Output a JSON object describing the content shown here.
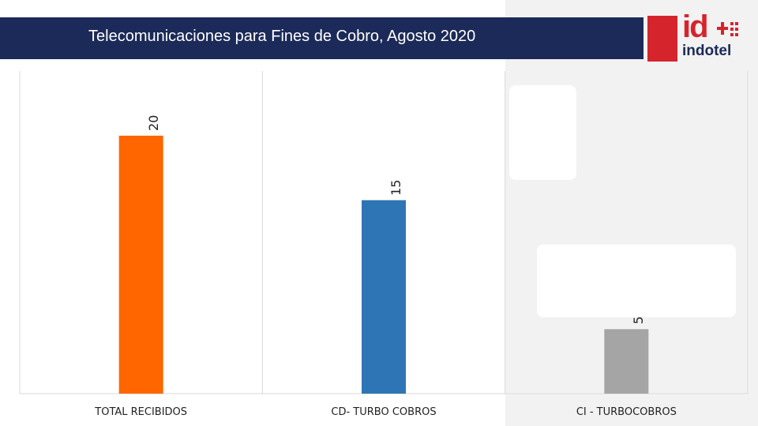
{
  "header": {
    "title": "Telecomunicaciones para Fines de Cobro, Agosto 2020"
  },
  "logo": {
    "mark": "id",
    "name": "indotel"
  },
  "colors": {
    "title_bar": "#1b2a58",
    "brand_red": "#d6242d"
  },
  "chart_data": {
    "type": "bar",
    "title": "Telecomunicaciones para Fines de Cobro, Agosto 2020",
    "categories": [
      "TOTAL RECIBIDOS",
      "CD- TURBO COBROS",
      "CI - TURBOCOBROS"
    ],
    "values": [
      20,
      15,
      5
    ],
    "colors": [
      "#ff6600",
      "#2e75b6",
      "#a5a5a5"
    ],
    "value_labels": [
      "20",
      "15",
      "5"
    ],
    "ylim": [
      0,
      20
    ],
    "grid": "vertical separators",
    "legend": "none"
  }
}
